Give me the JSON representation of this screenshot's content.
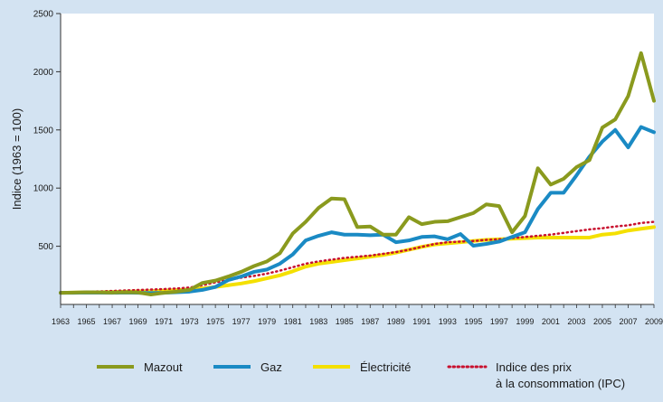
{
  "chart_data": {
    "type": "line",
    "title": "",
    "xlabel": "",
    "ylabel": "Indice (1963 = 100)",
    "xlim": [
      1963,
      2009
    ],
    "ylim": [
      0,
      2500
    ],
    "yticks": [
      500,
      1000,
      1500,
      2000,
      2500
    ],
    "xticks": [
      1963,
      1965,
      1967,
      1969,
      1971,
      1973,
      1975,
      1977,
      1979,
      1981,
      1983,
      1985,
      1987,
      1989,
      1991,
      1993,
      1995,
      1997,
      1999,
      2001,
      2003,
      2005,
      2007,
      2009
    ],
    "grid": false,
    "legend_position": "bottom",
    "x": [
      1963,
      1964,
      1965,
      1966,
      1967,
      1968,
      1969,
      1970,
      1971,
      1972,
      1973,
      1974,
      1975,
      1976,
      1977,
      1978,
      1979,
      1980,
      1981,
      1982,
      1983,
      1984,
      1985,
      1986,
      1987,
      1988,
      1989,
      1990,
      1991,
      1992,
      1993,
      1994,
      1995,
      1996,
      1997,
      1998,
      1999,
      2000,
      2001,
      2002,
      2003,
      2004,
      2005,
      2006,
      2007,
      2008,
      2009
    ],
    "series": [
      {
        "name": "Mazout",
        "color": "#8a9a1e",
        "style": "solid",
        "values": [
          100,
          102,
          105,
          104,
          102,
          105,
          103,
          85,
          100,
          110,
          125,
          185,
          205,
          240,
          280,
          330,
          370,
          440,
          610,
          710,
          830,
          910,
          905,
          665,
          670,
          600,
          600,
          750,
          690,
          710,
          715,
          750,
          785,
          860,
          845,
          620,
          760,
          1170,
          1030,
          1080,
          1180,
          1240,
          1520,
          1590,
          1790,
          2160,
          1750
        ]
      },
      {
        "name": "Gaz",
        "color": "#1a8ac4",
        "style": "solid",
        "values": [
          100,
          100,
          102,
          101,
          100,
          102,
          100,
          98,
          100,
          105,
          110,
          125,
          150,
          210,
          240,
          280,
          300,
          350,
          430,
          550,
          590,
          620,
          600,
          600,
          595,
          600,
          535,
          550,
          580,
          585,
          560,
          605,
          505,
          520,
          540,
          580,
          620,
          820,
          960,
          960,
          1110,
          1270,
          1400,
          1500,
          1350,
          1525,
          1480
        ]
      },
      {
        "name": "Électricité",
        "color": "#f4e000",
        "style": "solid",
        "values": [
          100,
          102,
          104,
          105,
          107,
          110,
          112,
          114,
          118,
          122,
          128,
          138,
          150,
          165,
          180,
          200,
          225,
          250,
          285,
          325,
          350,
          365,
          380,
          395,
          410,
          425,
          445,
          470,
          495,
          515,
          525,
          535,
          545,
          555,
          560,
          565,
          570,
          575,
          575,
          575,
          575,
          575,
          600,
          610,
          635,
          650,
          665
        ]
      },
      {
        "name": "Indice des prix à la consommation (IPC)",
        "color": "#c8102e",
        "style": "dotted",
        "values": [
          100,
          104,
          108,
          112,
          116,
          120,
          124,
          128,
          132,
          137,
          145,
          165,
          190,
          210,
          230,
          245,
          265,
          290,
          320,
          350,
          370,
          385,
          400,
          410,
          420,
          435,
          450,
          470,
          495,
          520,
          535,
          540,
          545,
          555,
          560,
          570,
          580,
          590,
          600,
          615,
          630,
          645,
          655,
          670,
          680,
          700,
          710
        ]
      }
    ]
  },
  "legend": [
    {
      "label": "Mazout",
      "color": "#8a9a1e",
      "style": "solid"
    },
    {
      "label": "Gaz",
      "color": "#1a8ac4",
      "style": "solid"
    },
    {
      "label": "Électricité",
      "color": "#f4e000",
      "style": "solid"
    },
    {
      "label_line1": "Indice des prix",
      "label_line2": "à la consommation (IPC)",
      "color": "#c8102e",
      "style": "dotted"
    }
  ]
}
